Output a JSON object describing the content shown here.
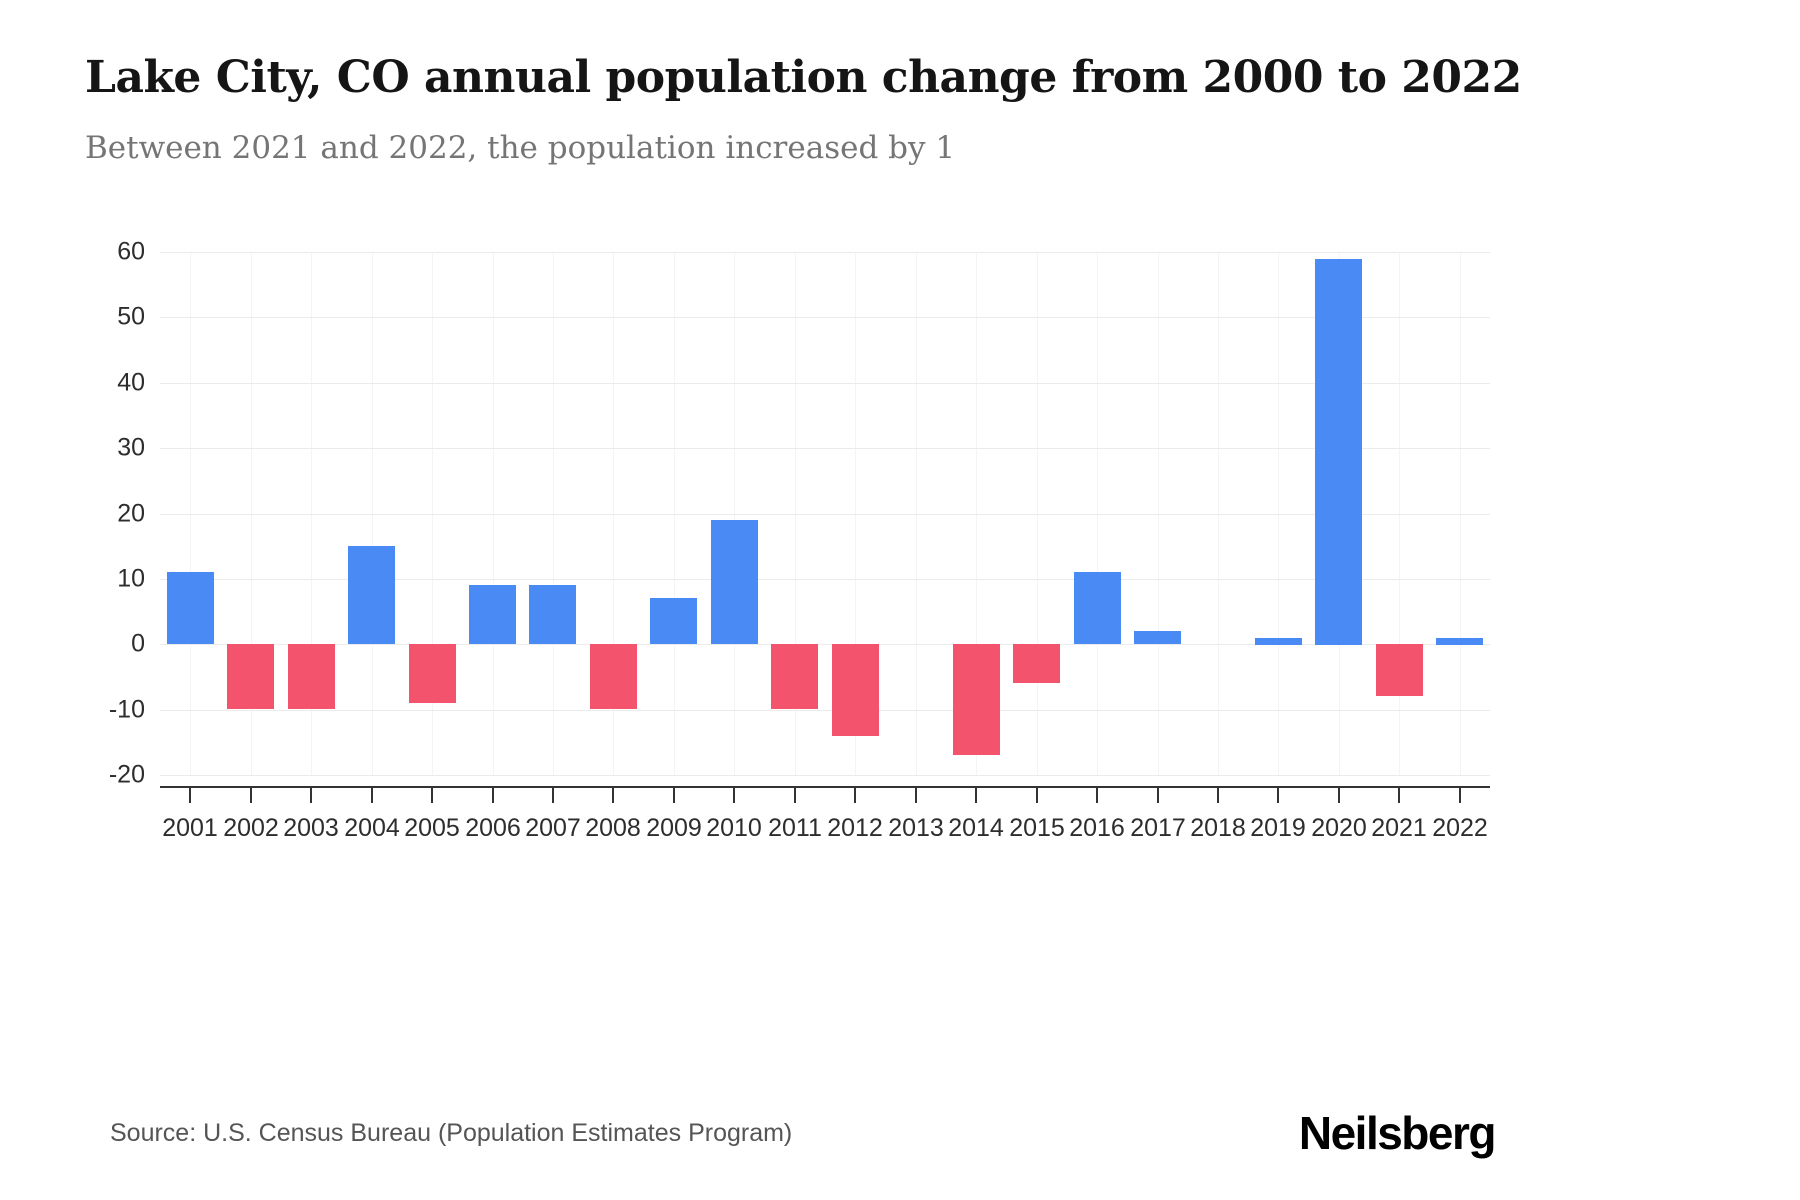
{
  "header": {
    "title": "Lake City, CO annual population change from 2000 to 2022",
    "subtitle": "Between 2021 and 2022, the population increased by 1"
  },
  "chart_data": {
    "type": "bar",
    "title": "Lake City, CO annual population change from 2000 to 2022",
    "subtitle": "Between 2021 and 2022, the population increased by 1",
    "categories": [
      "2001",
      "2002",
      "2003",
      "2004",
      "2005",
      "2006",
      "2007",
      "2008",
      "2009",
      "2010",
      "2011",
      "2012",
      "2013",
      "2014",
      "2015",
      "2016",
      "2017",
      "2018",
      "2019",
      "2020",
      "2021",
      "2022"
    ],
    "values": [
      11,
      -10,
      -10,
      15,
      -9,
      9,
      9,
      -10,
      7,
      19,
      -10,
      -14,
      0,
      -17,
      -6,
      11,
      2,
      0,
      1,
      59,
      -8,
      1
    ],
    "xlabel": "",
    "ylabel": "",
    "ylim": [
      -20,
      60
    ],
    "yticks": [
      60,
      50,
      40,
      30,
      20,
      10,
      0,
      -10,
      -20
    ],
    "grid": true,
    "legend": "none",
    "positive_color": "#4a8af4",
    "negative_color": "#f4536e"
  },
  "footer": {
    "source": "Source: U.S. Census Bureau (Population Estimates Program)",
    "brand": "Neilsberg"
  }
}
